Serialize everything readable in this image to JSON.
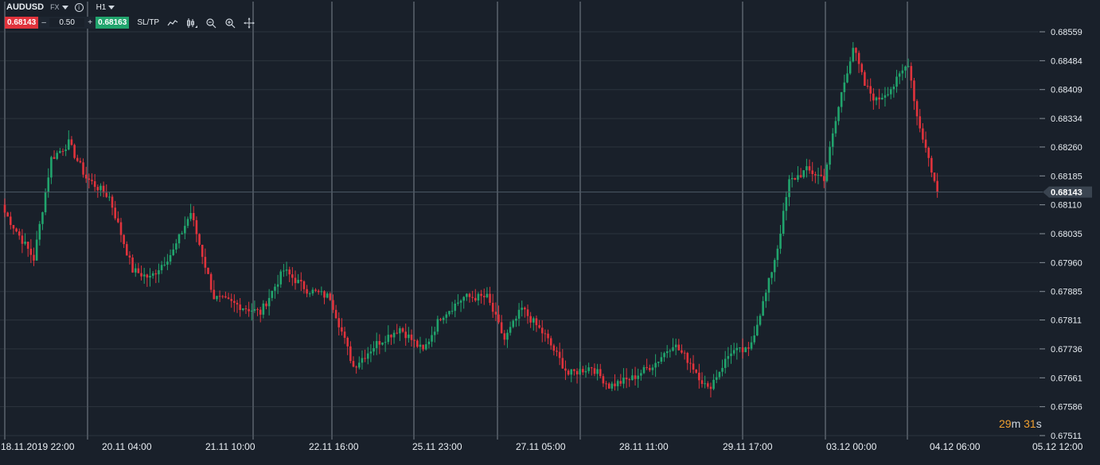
{
  "toolbar": {
    "symbol": "AUDUSD",
    "market_type": "FX",
    "timeframe": "H1",
    "sell_price": "0.68143",
    "lot_size": "0.50",
    "buy_price": "0.68163",
    "minus_label": "–",
    "plus_label": "+",
    "sltp_label": "SL/TP",
    "icons": [
      "info-icon",
      "line-chart-icon",
      "candlestick-icon",
      "zoom-out-icon",
      "zoom-in-icon",
      "crosshair-icon"
    ]
  },
  "timer": {
    "minutes": "29",
    "m_unit": "m",
    "seconds": "31",
    "s_unit": "s"
  },
  "colors": {
    "background": "#19202a",
    "up": "#21a46d",
    "down": "#e0333c",
    "grid": "#2c343e",
    "separator": "#4a525c",
    "axis_text": "#e8edf2",
    "timer": "#f0a030"
  },
  "chart_data": {
    "type": "candlestick",
    "symbol": "AUDUSD",
    "timeframe": "H1",
    "current_price": 0.68143,
    "current_price_label": "0.68143",
    "ylim": [
      0.6747,
      0.6862
    ],
    "y_ticks": [
      "0.68559",
      "0.68484",
      "0.68409",
      "0.68334",
      "0.68260",
      "0.68185",
      "0.68110",
      "0.68035",
      "0.67960",
      "0.67885",
      "0.67811",
      "0.67736",
      "0.67661",
      "0.67586",
      "0.67511"
    ],
    "x_labels": [
      "18.11.2019 22:00",
      "20.11 04:00",
      "21.11 10:00",
      "22.11 16:00",
      "25.11 23:00",
      "27.11 05:00",
      "28.11 11:00",
      "29.11 17:00",
      "03.12 00:00",
      "04.12 06:00",
      "05.12 12:00"
    ],
    "anchors": [
      {
        "bar": 0,
        "price": 0.6809
      },
      {
        "bar": 10,
        "price": 0.6797
      },
      {
        "bar": 16,
        "price": 0.6823
      },
      {
        "bar": 22,
        "price": 0.6827
      },
      {
        "bar": 28,
        "price": 0.6818
      },
      {
        "bar": 36,
        "price": 0.6813
      },
      {
        "bar": 44,
        "price": 0.6794
      },
      {
        "bar": 50,
        "price": 0.6792
      },
      {
        "bar": 58,
        "price": 0.6799
      },
      {
        "bar": 64,
        "price": 0.6809
      },
      {
        "bar": 72,
        "price": 0.6787
      },
      {
        "bar": 80,
        "price": 0.6785
      },
      {
        "bar": 88,
        "price": 0.6783
      },
      {
        "bar": 96,
        "price": 0.6794
      },
      {
        "bar": 104,
        "price": 0.6789
      },
      {
        "bar": 112,
        "price": 0.6787
      },
      {
        "bar": 120,
        "price": 0.6769
      },
      {
        "bar": 128,
        "price": 0.6775
      },
      {
        "bar": 136,
        "price": 0.6779
      },
      {
        "bar": 144,
        "price": 0.6773
      },
      {
        "bar": 150,
        "price": 0.6782
      },
      {
        "bar": 158,
        "price": 0.6787
      },
      {
        "bar": 166,
        "price": 0.6787
      },
      {
        "bar": 172,
        "price": 0.6776
      },
      {
        "bar": 178,
        "price": 0.6784
      },
      {
        "bar": 186,
        "price": 0.6777
      },
      {
        "bar": 194,
        "price": 0.6767
      },
      {
        "bar": 202,
        "price": 0.6769
      },
      {
        "bar": 208,
        "price": 0.6764
      },
      {
        "bar": 216,
        "price": 0.6766
      },
      {
        "bar": 224,
        "price": 0.677
      },
      {
        "bar": 230,
        "price": 0.6775
      },
      {
        "bar": 236,
        "price": 0.677
      },
      {
        "bar": 242,
        "price": 0.6763
      },
      {
        "bar": 250,
        "price": 0.6773
      },
      {
        "bar": 256,
        "price": 0.6773
      },
      {
        "bar": 262,
        "price": 0.6788
      },
      {
        "bar": 266,
        "price": 0.68
      },
      {
        "bar": 270,
        "price": 0.6817
      },
      {
        "bar": 276,
        "price": 0.682
      },
      {
        "bar": 282,
        "price": 0.6818
      },
      {
        "bar": 288,
        "price": 0.684
      },
      {
        "bar": 292,
        "price": 0.6852
      },
      {
        "bar": 296,
        "price": 0.6842
      },
      {
        "bar": 300,
        "price": 0.6838
      },
      {
        "bar": 306,
        "price": 0.6842
      },
      {
        "bar": 311,
        "price": 0.6848
      },
      {
        "bar": 314,
        "price": 0.6834
      },
      {
        "bar": 318,
        "price": 0.6823
      },
      {
        "bar": 321,
        "price": 0.6814
      }
    ]
  }
}
